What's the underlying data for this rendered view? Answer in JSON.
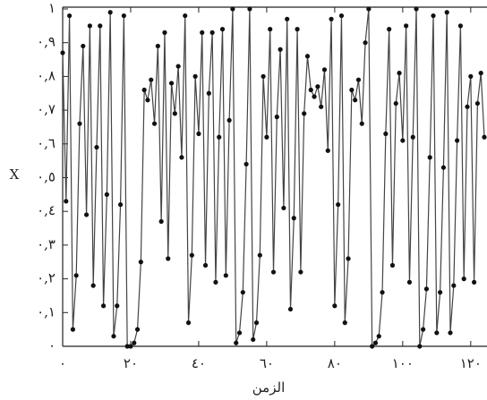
{
  "chart_data": {
    "type": "line",
    "xlabel": "الزمن",
    "ylabel": "X",
    "x": [
      0,
      1,
      2,
      3,
      4,
      5,
      6,
      7,
      8,
      9,
      10,
      11,
      12,
      13,
      14,
      15,
      16,
      17,
      18,
      19,
      20,
      21,
      22,
      23,
      24,
      25,
      26,
      27,
      28,
      29,
      30,
      31,
      32,
      33,
      34,
      35,
      36,
      37,
      38,
      39,
      40,
      41,
      42,
      43,
      44,
      45,
      46,
      47,
      48,
      49,
      50,
      51,
      52,
      53,
      54,
      55,
      56,
      57,
      58,
      59,
      60,
      61,
      62,
      63,
      64,
      65,
      66,
      67,
      68,
      69,
      70,
      71,
      72,
      73,
      74,
      75,
      76,
      77,
      78,
      79,
      80,
      81,
      82,
      83,
      84,
      85,
      86,
      87,
      88,
      89,
      90,
      91,
      92,
      93,
      94,
      95,
      96,
      97,
      98,
      99,
      100,
      101,
      102,
      103,
      104,
      105,
      106,
      107,
      108,
      109,
      110,
      111,
      112,
      113,
      114,
      115,
      116,
      117,
      118,
      119,
      120,
      121,
      122,
      123,
      124
    ],
    "values": [
      0.87,
      0.43,
      0.98,
      0.05,
      0.21,
      0.66,
      0.89,
      0.39,
      0.95,
      0.18,
      0.59,
      0.95,
      0.12,
      0.45,
      0.99,
      0.03,
      0.12,
      0.42,
      0.98,
      0.0,
      0.0,
      0.01,
      0.05,
      0.25,
      0.76,
      0.73,
      0.79,
      0.66,
      0.89,
      0.37,
      0.93,
      0.26,
      0.78,
      0.69,
      0.83,
      0.56,
      0.98,
      0.07,
      0.27,
      0.8,
      0.63,
      0.93,
      0.24,
      0.75,
      0.93,
      0.19,
      0.62,
      0.94,
      0.21,
      0.67,
      1.0,
      0.01,
      0.04,
      0.16,
      0.54,
      1.0,
      0.02,
      0.07,
      0.27,
      0.8,
      0.62,
      0.94,
      0.22,
      0.68,
      0.88,
      0.41,
      0.97,
      0.11,
      0.38,
      0.94,
      0.22,
      0.69,
      0.86,
      0.76,
      0.74,
      0.77,
      0.71,
      0.82,
      0.58,
      0.97,
      0.12,
      0.42,
      0.98,
      0.07,
      0.26,
      0.76,
      0.73,
      0.79,
      0.66,
      0.9,
      1.0,
      0.0,
      0.01,
      0.03,
      0.16,
      0.63,
      0.94,
      0.24,
      0.72,
      0.81,
      0.61,
      0.95,
      0.19,
      0.62,
      1.0,
      0.0,
      0.05,
      0.17,
      0.56,
      0.98,
      0.04,
      0.16,
      0.53,
      0.99,
      0.04,
      0.18,
      0.61,
      0.95,
      0.2,
      0.71,
      0.8,
      0.19,
      0.72,
      0.81,
      0.62
    ],
    "color": "#444444",
    "marker_color": "#111111",
    "xlim": [
      0,
      124
    ],
    "ylim": [
      0,
      1
    ],
    "xticks": [
      {
        "value": 0,
        "label": "٠"
      },
      {
        "value": 20,
        "label": "٢٠"
      },
      {
        "value": 40,
        "label": "٤٠"
      },
      {
        "value": 60,
        "label": "٦٠"
      },
      {
        "value": 80,
        "label": "٨٠"
      },
      {
        "value": 100,
        "label": "١٠٠"
      },
      {
        "value": 120,
        "label": "١٢٠"
      }
    ],
    "yticks": [
      {
        "value": 0,
        "label": "٠"
      },
      {
        "value": 0.1,
        "label": "٠,١"
      },
      {
        "value": 0.2,
        "label": "٠,٢"
      },
      {
        "value": 0.3,
        "label": "٠,٣"
      },
      {
        "value": 0.4,
        "label": "٠,٤"
      },
      {
        "value": 0.5,
        "label": "٠,٥"
      },
      {
        "value": 0.6,
        "label": "٠,٦"
      },
      {
        "value": 0.7,
        "label": "٠,٧"
      },
      {
        "value": 0.8,
        "label": "٠,٨"
      },
      {
        "value": 0.9,
        "label": "٠,٩"
      },
      {
        "value": 1,
        "label": "١"
      }
    ]
  }
}
